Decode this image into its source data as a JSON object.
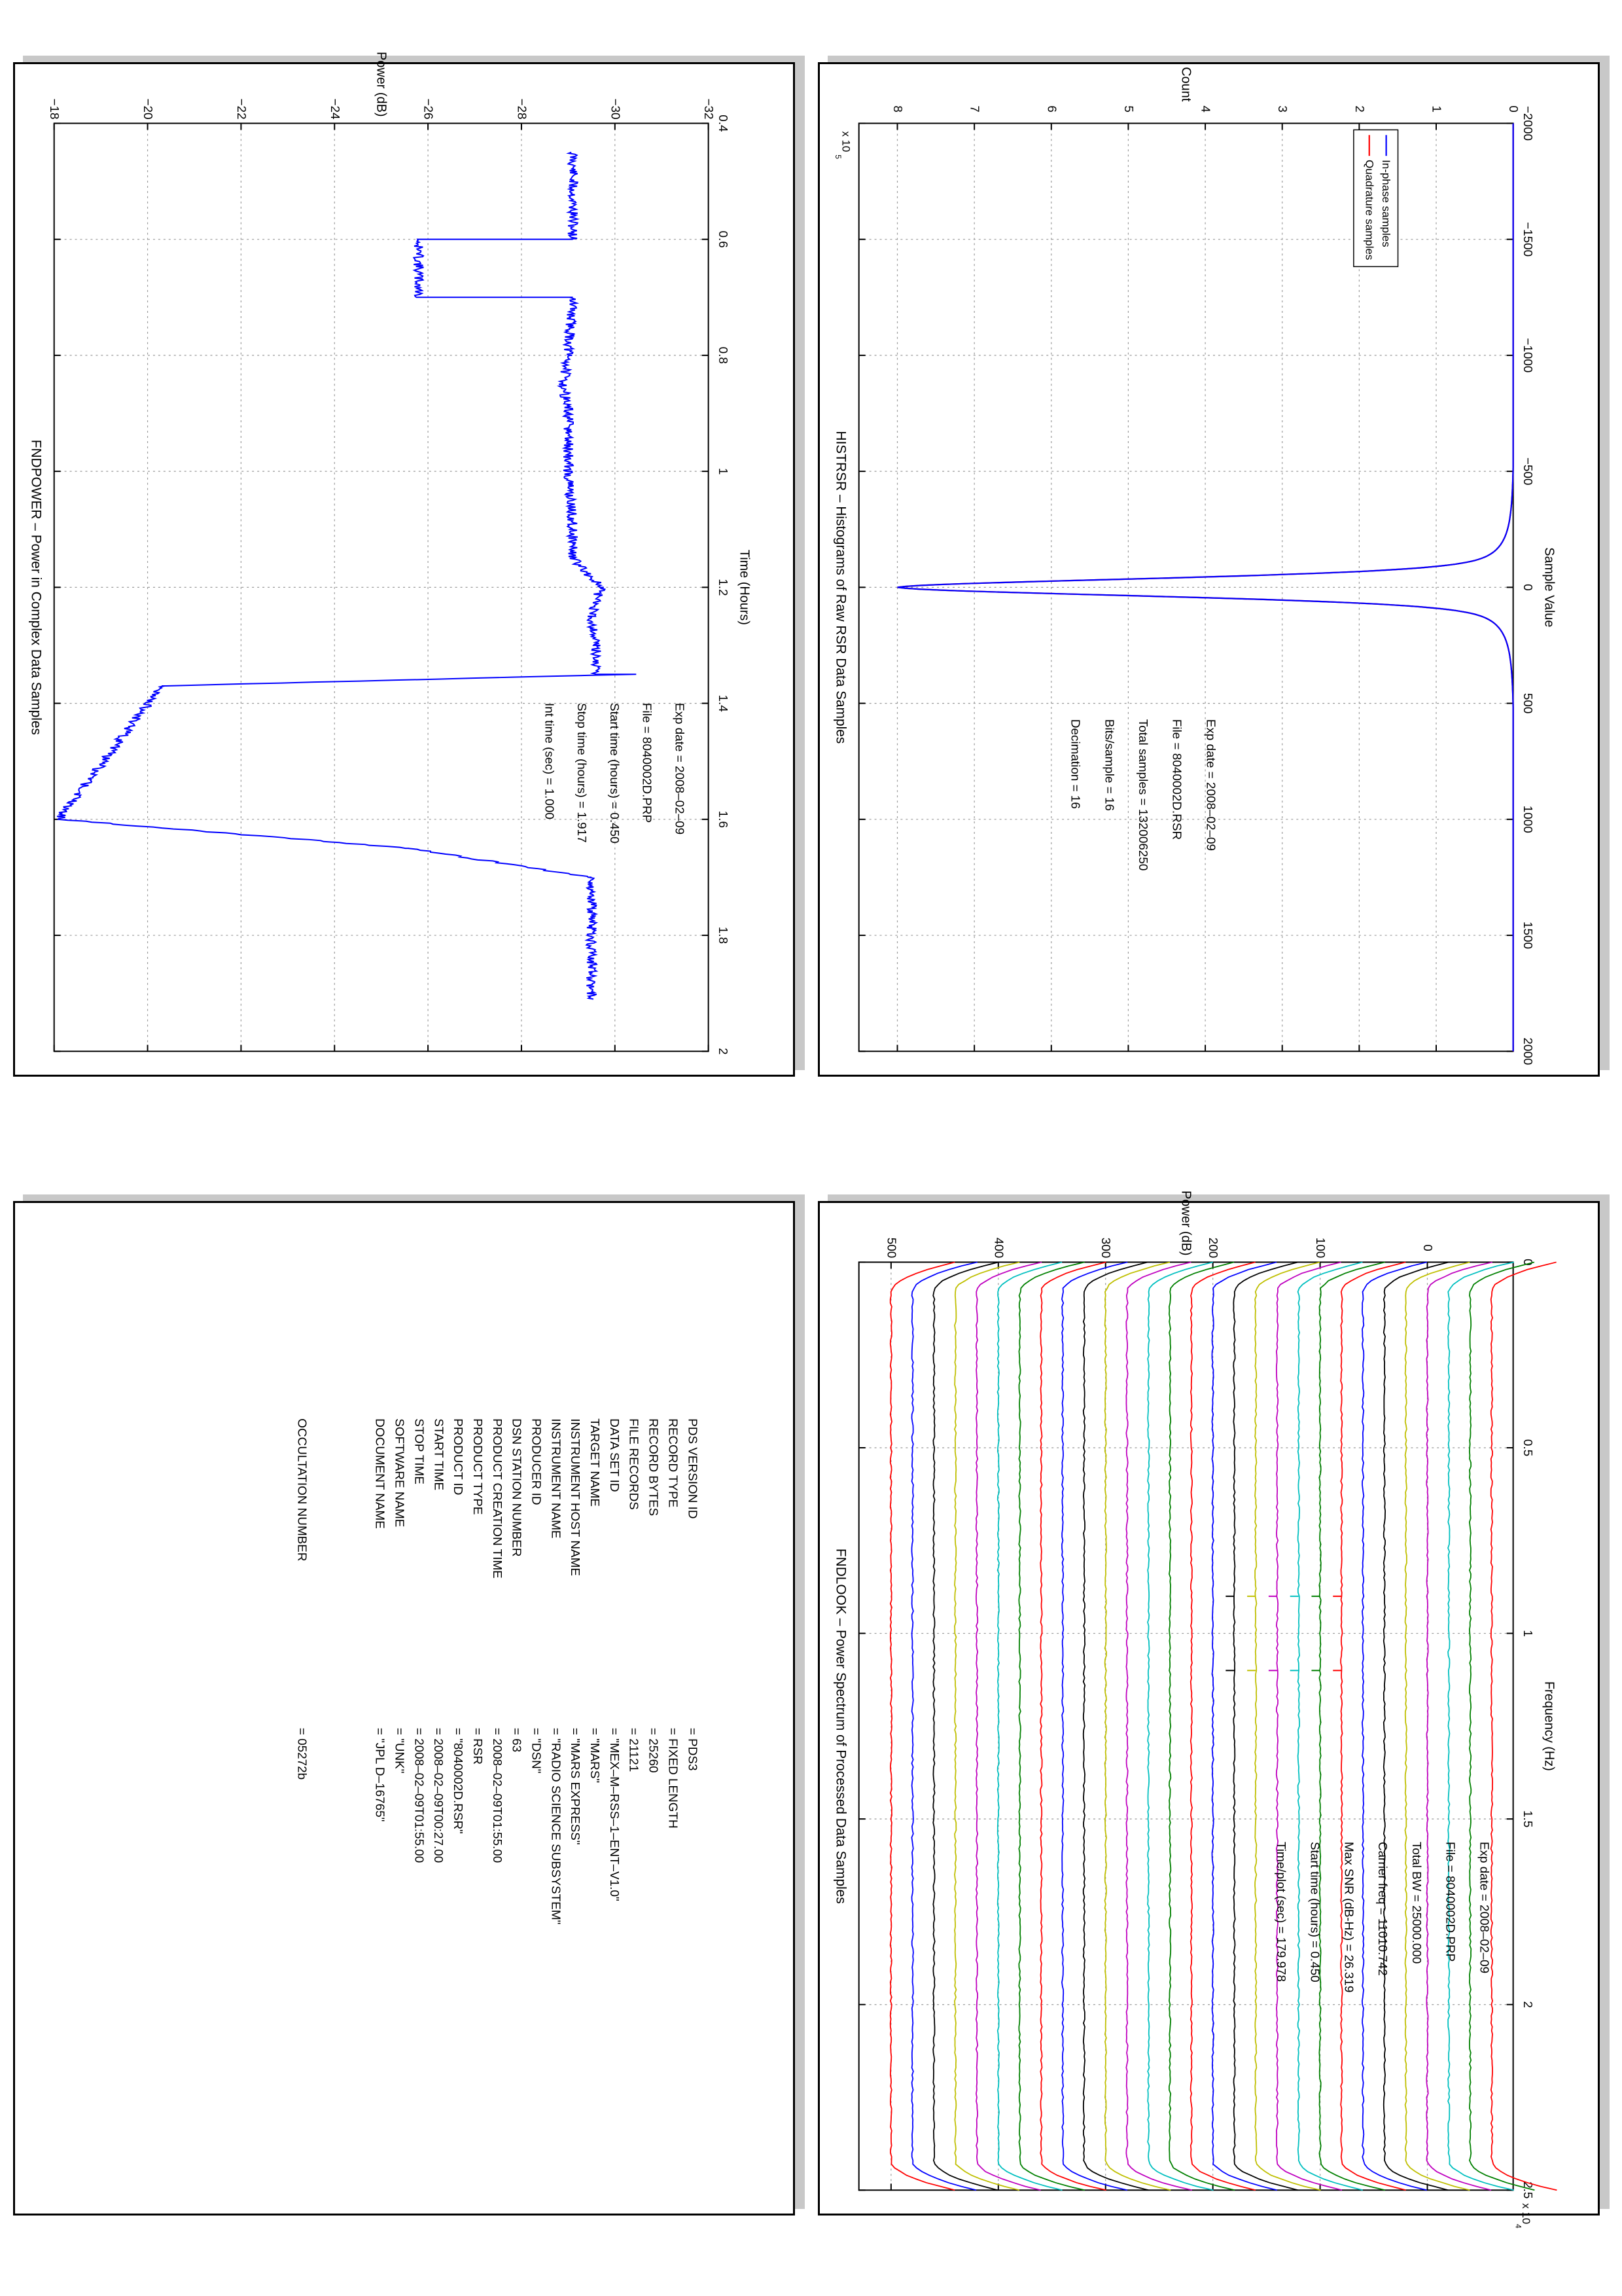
{
  "page": {
    "background": "#ffffff",
    "panel_shadow_color": "#c8c8c8"
  },
  "chart_data": [
    {
      "id": "histrsr",
      "type": "line",
      "title": "HISTRSR – Histograms of Raw RSR Data Samples",
      "xlabel": "Sample Value",
      "ylabel": "Count",
      "xlim": [
        -2000,
        2000
      ],
      "ylim": [
        0,
        8.5
      ],
      "y_scale_label": "x 10",
      "y_scale_exponent": "5",
      "xticks": [
        -2000,
        -1500,
        -1000,
        -500,
        0,
        500,
        1000,
        1500,
        2000
      ],
      "xtick_labels": [
        "−2000",
        "−1500",
        "−1000",
        "−500",
        "0",
        "500",
        "1000",
        "1500",
        "2000"
      ],
      "yticks": [
        0,
        1,
        2,
        3,
        4,
        5,
        6,
        7,
        8
      ],
      "ytick_labels": [
        "0",
        "1",
        "2",
        "3",
        "4",
        "5",
        "6",
        "7",
        "8"
      ],
      "grid": true,
      "legend_position": "top-left",
      "series": [
        {
          "name": "In-phase samples",
          "color": "#0000ff",
          "peak": 8.0,
          "sigma": 40
        },
        {
          "name": "Quadrature samples",
          "color": "#ff0000",
          "peak": 8.0,
          "sigma": 40
        }
      ],
      "annotations": [
        {
          "label": "Exp date  =  2008–02–09"
        },
        {
          "label": "File = 8040002D.RSR"
        },
        {
          "label": "Total samples =  132006250"
        },
        {
          "label": "Bits/sample    =        16"
        },
        {
          "label": "Decimation     =        16"
        }
      ]
    },
    {
      "id": "fndpower",
      "type": "line",
      "title": "FNDPOWER – Power in Complex Data Samples",
      "xlabel": "Time (Hours)",
      "ylabel": "Power (dB)",
      "xlim": [
        0.4,
        2.0
      ],
      "ylim": [
        -32,
        -18
      ],
      "xticks": [
        0.4,
        0.6,
        0.8,
        1.0,
        1.2,
        1.4,
        1.6,
        1.8,
        2.0
      ],
      "xtick_labels": [
        "0.4",
        "0.6",
        "0.8",
        "1",
        "1.2",
        "1.4",
        "1.6",
        "1.8",
        "2"
      ],
      "yticks": [
        -32,
        -30,
        -28,
        -26,
        -24,
        -22,
        -20,
        -18
      ],
      "ytick_labels": [
        "−32",
        "−30",
        "−28",
        "−26",
        "−24",
        "−22",
        "−20",
        "−18"
      ],
      "grid": true,
      "series": [
        {
          "name": "",
          "color": "#0000ff",
          "x": [
            0.45,
            0.6,
            0.6,
            0.7,
            0.7,
            0.8,
            0.85,
            0.9,
            1.0,
            1.1,
            1.15,
            1.2,
            1.25,
            1.3,
            1.35,
            1.35,
            1.37,
            1.37,
            1.6,
            1.6,
            1.65,
            1.65,
            1.7,
            1.7,
            1.91
          ],
          "y": [
            -29.1,
            -29.1,
            -25.8,
            -25.8,
            -29.1,
            -29.0,
            -28.9,
            -29.0,
            -29.0,
            -29.1,
            -29.1,
            -29.7,
            -29.5,
            -29.6,
            -29.6,
            -30.4,
            -20.3,
            -20.3,
            -18.1,
            -18.1,
            -25.6,
            -25.6,
            -29.5,
            -29.5,
            -29.5
          ]
        }
      ],
      "annotations": [
        {
          "label": "Exp date = 2008–02–09"
        },
        {
          "label": "File = 8040002D.PRP"
        },
        {
          "label": "Start time (hours) = 0.450"
        },
        {
          "label": "Stop time (hours) =  1.917"
        },
        {
          "label": "Int time (sec) =      1.000"
        }
      ]
    },
    {
      "id": "fndlook",
      "type": "line",
      "title": "FNDLOOK – Power Spectrum of Processed Data Samples",
      "xlabel": "Frequency (Hz)",
      "ylabel": "Power (dB)",
      "xlim": [
        0,
        2.5
      ],
      "ylim": [
        -80,
        530
      ],
      "x_scale_label": "x 10",
      "x_scale_exponent": "4",
      "xticks": [
        0,
        0.5,
        1.0,
        1.5,
        2.0,
        2.5
      ],
      "xtick_labels": [
        "0",
        "0.5",
        "1",
        "1.5",
        "2",
        "2.5"
      ],
      "yticks": [
        0,
        100,
        200,
        300,
        400,
        500
      ],
      "ytick_labels": [
        "0",
        "100",
        "200",
        "300",
        "400",
        "500"
      ],
      "grid": true,
      "series_offsets": [
        -60,
        -40,
        -20,
        0,
        20,
        40,
        60,
        80,
        100,
        120,
        140,
        160,
        180,
        200,
        220,
        240,
        260,
        280,
        300,
        320,
        340,
        360,
        380,
        400,
        420,
        440,
        460,
        480,
        500
      ],
      "series_colors": [
        "#ff0000",
        "#008000",
        "#00bfbf",
        "#bf00bf",
        "#bfbf00",
        "#000000",
        "#0000ff"
      ],
      "peak_frequencies": [
        0.9,
        1.1
      ],
      "annotations": [
        {
          "label": "Exp date = 2008–02–09"
        },
        {
          "label": "File = 8040002D.PRP"
        },
        {
          "label": "Total BW =        25000.000"
        },
        {
          "label": "Carrier freq =    11010.742"
        },
        {
          "label": "Max SNR (dB-Hz) =    26.319"
        },
        {
          "label": "Start time (hours) =    0.450"
        },
        {
          "label": "Time/plot (sec) =    179.978"
        }
      ]
    }
  ],
  "label_table": {
    "rows": [
      {
        "key": "PDS VERSION ID",
        "value": "=  PDS3"
      },
      {
        "key": "RECORD TYPE",
        "value": "=  FIXED LENGTH"
      },
      {
        "key": "RECORD BYTES",
        "value": "=  25260"
      },
      {
        "key": "FILE RECORDS",
        "value": "=  21121"
      },
      {
        "key": "DATA SET ID",
        "value": "=  \"MEX–M–RSS–1–ENT–V1.0\""
      },
      {
        "key": "TARGET NAME",
        "value": "=  \"MARS\""
      },
      {
        "key": "INSTRUMENT HOST NAME",
        "value": "=  \"MARS EXPRESS\""
      },
      {
        "key": "INSTRUMENT NAME",
        "value": "=  \"RADIO SCIENCE SUBSYSTEM\""
      },
      {
        "key": "PRODUCER ID",
        "value": "=  \"DSN\""
      },
      {
        "key": "DSN STATION NUMBER",
        "value": "=  63"
      },
      {
        "key": "PRODUCT CREATION TIME",
        "value": "=  2008–02–09T01:55.00"
      },
      {
        "key": "PRODUCT TYPE",
        "value": "=  RSR"
      },
      {
        "key": "PRODUCT ID",
        "value": "=  \"8040002D.RSR\""
      },
      {
        "key": "START TIME",
        "value": "=  2008–02–09T00:27.00"
      },
      {
        "key": "STOP TIME",
        "value": "=  2008–02–09T01:55.00"
      },
      {
        "key": "SOFTWARE NAME",
        "value": "=  \"UNK\""
      },
      {
        "key": "DOCUMENT NAME",
        "value": "=  \"JPL D–16765\""
      },
      {
        "key": "",
        "value": ""
      },
      {
        "key": "OCCULTATION NUMBER",
        "value": "=  05272b"
      }
    ]
  }
}
